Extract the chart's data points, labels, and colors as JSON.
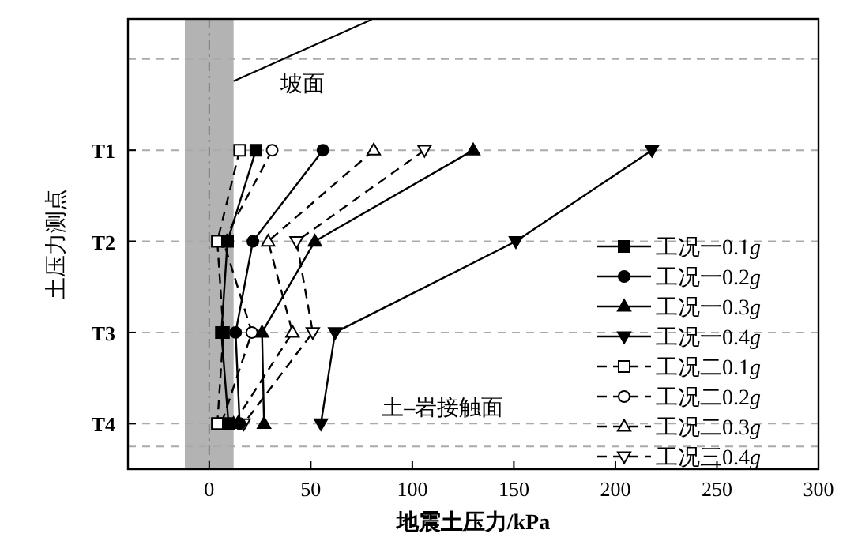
{
  "chart_data": {
    "type": "line",
    "orientation": "horizontal",
    "xlabel": "地震土压力/kPa",
    "ylabel": "土压力测点",
    "categories": [
      "T1",
      "T2",
      "T3",
      "T4"
    ],
    "xlim": [
      -40,
      300
    ],
    "xticks": [
      0,
      50,
      100,
      150,
      200,
      250,
      300
    ],
    "grid": "y",
    "legend": "bottom right",
    "annotations": [
      "坡面",
      "土–岩接触面"
    ],
    "bands": [
      {
        "axis": "x",
        "from": -12,
        "to": 12,
        "color": "#b3b3b3"
      }
    ],
    "ref_lines": [
      {
        "axis": "x",
        "value": 0,
        "color": "#808080",
        "line_style": "dashdot"
      }
    ],
    "series": [
      {
        "name": "工况一0.1g",
        "color": "#000000",
        "marker": "square",
        "line_style": "solid",
        "values": [
          23,
          9,
          6,
          9.5
        ]
      },
      {
        "name": "工况一0.2g",
        "color": "#000000",
        "marker": "circle",
        "line_style": "solid",
        "values": [
          56,
          21.5,
          13,
          15
        ]
      },
      {
        "name": "工况一0.3g",
        "color": "#000000",
        "marker": "triangle",
        "line_style": "solid",
        "values": [
          130,
          52,
          26,
          27
        ]
      },
      {
        "name": "工况一0.4g",
        "color": "#000000",
        "marker": "triangle_down",
        "line_style": "solid",
        "values": [
          218,
          151,
          62,
          55
        ]
      },
      {
        "name": "工况二0.1g",
        "color": "#000000",
        "marker": "square",
        "line_style": "dashed",
        "values": [
          15,
          4,
          7,
          4
        ]
      },
      {
        "name": "工况二0.2g",
        "color": "#000000",
        "marker": "circle",
        "line_style": "dashed",
        "values": [
          31,
          7,
          21,
          6
        ]
      },
      {
        "name": "工况二0.3g",
        "color": "#000000",
        "marker": "triangle",
        "line_style": "dashed",
        "values": [
          81,
          29,
          41,
          12
        ]
      },
      {
        "name": "工况三0.4g",
        "color": "#000000",
        "marker": "triangle_down",
        "line_style": "dashed",
        "values": [
          106,
          43,
          51,
          17
        ]
      }
    ]
  }
}
